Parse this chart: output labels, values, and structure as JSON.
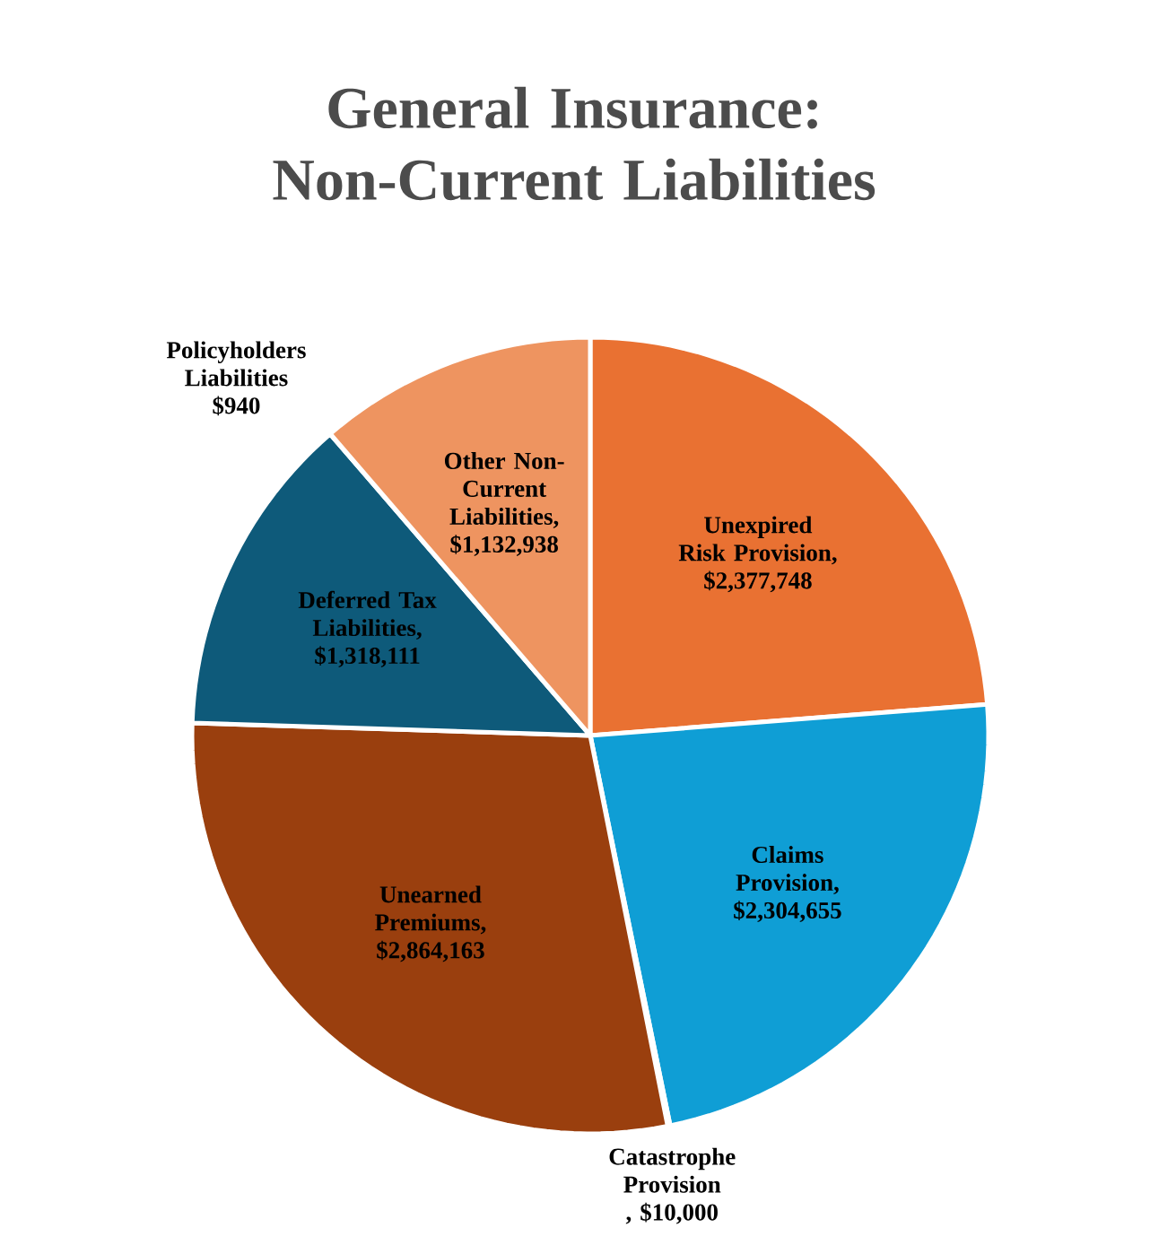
{
  "chart_data": {
    "type": "pie",
    "title": "General Insurance: Non-Current Liabilities",
    "categories": [
      "Unexpired Risk Provision",
      "Claims Provision",
      "Catastrophe Provision",
      "Unearned Premiums",
      "Deferred Tax Liabilities",
      "Policyholders Liabilities",
      "Other Non-Current Liabilities"
    ],
    "values": [
      2377748,
      2304655,
      10000,
      2864163,
      1318111,
      940,
      1132938
    ],
    "value_labels": [
      ", $2,377,748",
      ", $2,304,655",
      ", $10,000",
      ", $2,864,163",
      ", $1,318,111",
      "$940",
      ", $1,132,938"
    ],
    "colors": [
      "#e97132",
      "#0f9ed5",
      "#196b24",
      "#9a3f0e",
      "#0e5a7a",
      "#a02b93",
      "#ee9460"
    ]
  }
}
